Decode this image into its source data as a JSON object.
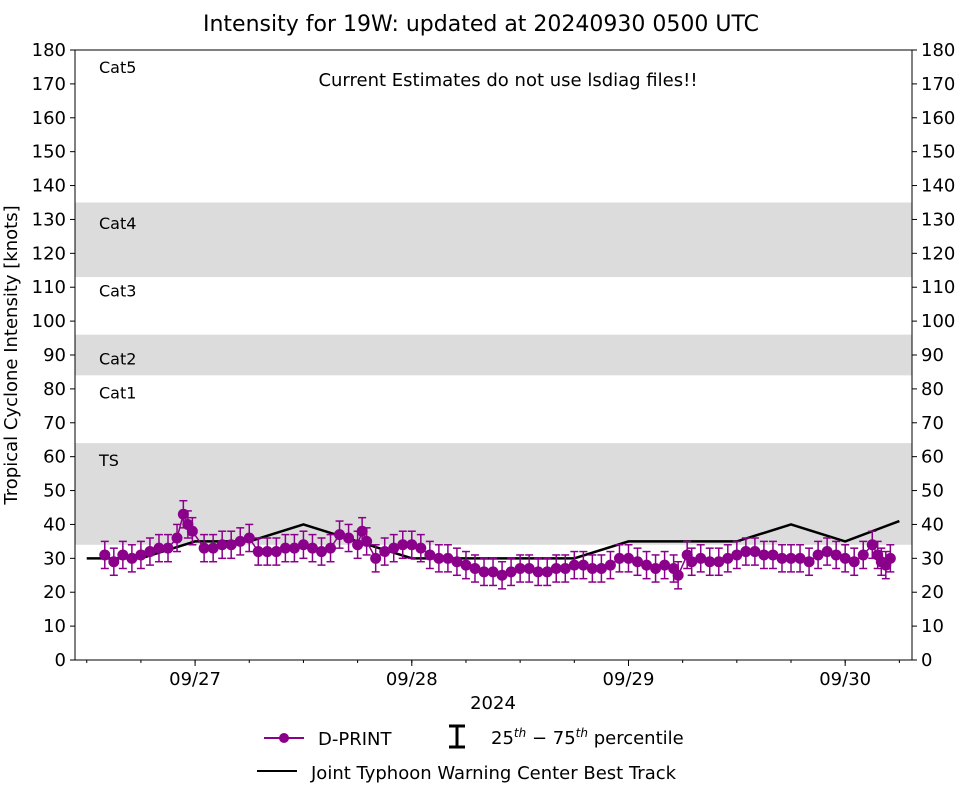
{
  "chart_data": {
    "type": "line",
    "title": "Intensity for 19W: updated at 20240930 0500 UTC",
    "annotation": "Current Estimates do not use lsdiag files!!",
    "xlabel": "2024",
    "ylabel": "Tropical Cyclone Intensity [knots]",
    "ylim": [
      0,
      180
    ],
    "yticks": [
      0,
      10,
      20,
      30,
      40,
      50,
      60,
      70,
      80,
      90,
      100,
      110,
      120,
      130,
      140,
      150,
      160,
      170,
      180
    ],
    "x_units": "hours since 2024-09-26 00 UTC",
    "xlim": [
      10.7,
      103.4
    ],
    "xticks": [
      {
        "hour": 24,
        "label": "09/27"
      },
      {
        "hour": 48,
        "label": "09/28"
      },
      {
        "hour": 72,
        "label": "09/29"
      },
      {
        "hour": 96,
        "label": "09/30"
      }
    ],
    "bands": [
      {
        "label": "TS",
        "from": 34,
        "to": 64,
        "shaded": true,
        "label_at": 59
      },
      {
        "label": "Cat1",
        "from": 64,
        "to": 83,
        "shaded": false,
        "label_at": 79
      },
      {
        "label": "Cat2",
        "from": 84,
        "to": 96,
        "shaded": true,
        "label_at": 89
      },
      {
        "label": "Cat3",
        "from": 96,
        "to": 113,
        "shaded": false,
        "label_at": 109
      },
      {
        "label": "Cat4",
        "from": 113,
        "to": 135,
        "shaded": true,
        "label_at": 129
      },
      {
        "label": "Cat5",
        "from": 135,
        "to": 180,
        "shaded": false,
        "label_at": 175
      }
    ],
    "series": [
      {
        "name": "D-PRINT",
        "color": "#8b008b",
        "x": [
          14,
          15,
          16,
          17,
          18,
          19,
          20,
          21,
          22,
          22.7,
          23.2,
          23.7,
          25,
          26,
          27,
          28,
          29,
          30,
          31,
          32,
          33,
          34,
          35,
          36,
          37,
          38,
          39,
          40,
          41,
          42,
          42.5,
          43,
          44,
          45,
          46,
          47,
          48,
          49,
          50,
          51,
          52,
          53,
          54,
          55,
          56,
          57,
          58,
          59,
          60,
          61,
          62,
          63,
          64,
          65,
          66,
          67,
          68,
          69,
          70,
          71,
          72,
          73,
          74,
          75,
          76,
          77,
          77.5,
          78.5,
          79,
          80,
          81,
          82,
          83,
          84,
          85,
          86,
          87,
          88,
          89,
          90,
          91,
          92,
          93,
          94,
          95,
          96,
          97,
          98,
          99,
          99.6,
          100,
          100.5,
          101
        ],
        "y": [
          31,
          29,
          31,
          30,
          31,
          32,
          33,
          33,
          36,
          43,
          40,
          38,
          33,
          33,
          34,
          34,
          35,
          36,
          32,
          32,
          32,
          33,
          33,
          34,
          33,
          32,
          33,
          37,
          36,
          34,
          38,
          35,
          30,
          32,
          33,
          34,
          34,
          33,
          31,
          30,
          30,
          29,
          28,
          27,
          26,
          26,
          25,
          26,
          27,
          27,
          26,
          26,
          27,
          27,
          28,
          28,
          27,
          27,
          28,
          30,
          30,
          29,
          28,
          27,
          28,
          27,
          25,
          31,
          29,
          30,
          29,
          29,
          30,
          31,
          32,
          32,
          31,
          31,
          30,
          30,
          30,
          29,
          31,
          32,
          31,
          30,
          29,
          31,
          34,
          31,
          29,
          28,
          30
        ],
        "error_halfwidth": 4
      },
      {
        "name": "Joint Typhoon Warning Center Best Track",
        "color": "#000000",
        "x": [
          12,
          18,
          24,
          30,
          36,
          48,
          54,
          60,
          66,
          72,
          78,
          84,
          90,
          96,
          102
        ],
        "y": [
          30,
          30,
          35,
          35,
          40,
          30,
          30,
          30,
          30,
          35,
          35,
          35,
          40,
          35,
          41
        ]
      }
    ],
    "legend": {
      "placement": "bottom",
      "dprint_label": "D-PRINT",
      "percentile_label": "25th − 75th percentile",
      "percentile_sup1": "th",
      "percentile_sup2": "th",
      "percentile_pre": "25",
      "percentile_mid": " − 75",
      "percentile_post": " percentile",
      "besttrack_label": "Joint Typhoon Warning Center Best Track"
    }
  }
}
